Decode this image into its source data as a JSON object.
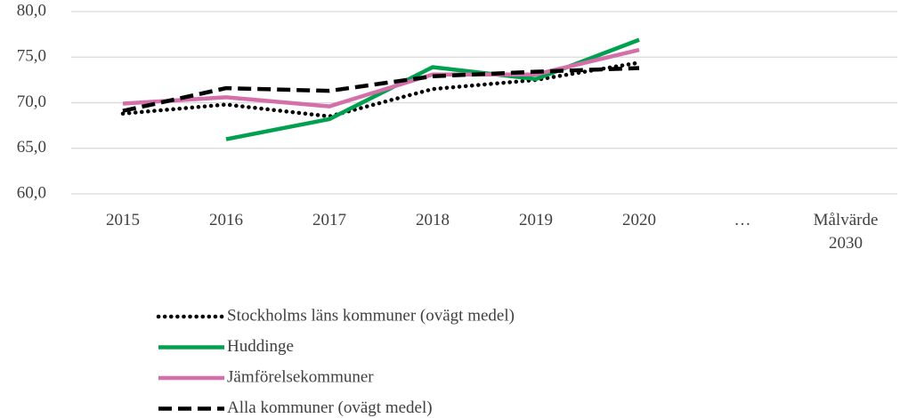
{
  "chart_data": {
    "type": "line",
    "categories": [
      "2015",
      "2016",
      "2017",
      "2018",
      "2019",
      "2020",
      "…",
      "Målvärde 2030"
    ],
    "series": [
      {
        "name": "Stockholms läns kommuner (ovägt medel)",
        "color": "#000000",
        "dash": "dotted",
        "values": [
          68.8,
          69.8,
          68.5,
          71.5,
          72.5,
          74.4,
          null,
          null
        ]
      },
      {
        "name": "Huddinge",
        "color": "#00a04f",
        "dash": "solid",
        "values": [
          null,
          66.0,
          68.2,
          73.9,
          72.6,
          76.9,
          null,
          null
        ]
      },
      {
        "name": "Jämförelsekommuner",
        "color": "#d46fa9",
        "dash": "solid",
        "values": [
          69.9,
          70.6,
          69.6,
          73.1,
          73.1,
          75.8,
          null,
          null
        ]
      },
      {
        "name": "Alla kommuner (ovägt medel)",
        "color": "#000000",
        "dash": "dashed",
        "values": [
          69.1,
          71.6,
          71.3,
          72.9,
          73.4,
          73.8,
          null,
          null
        ]
      }
    ],
    "ylim": [
      60,
      80
    ],
    "yticks": [
      {
        "value": 60,
        "label": "60,0"
      },
      {
        "value": 65,
        "label": "65,0"
      },
      {
        "value": 70,
        "label": "70,0"
      },
      {
        "value": 75,
        "label": "75,0"
      },
      {
        "value": 80,
        "label": "80,0"
      }
    ],
    "grid": true,
    "legend": "bottom"
  }
}
